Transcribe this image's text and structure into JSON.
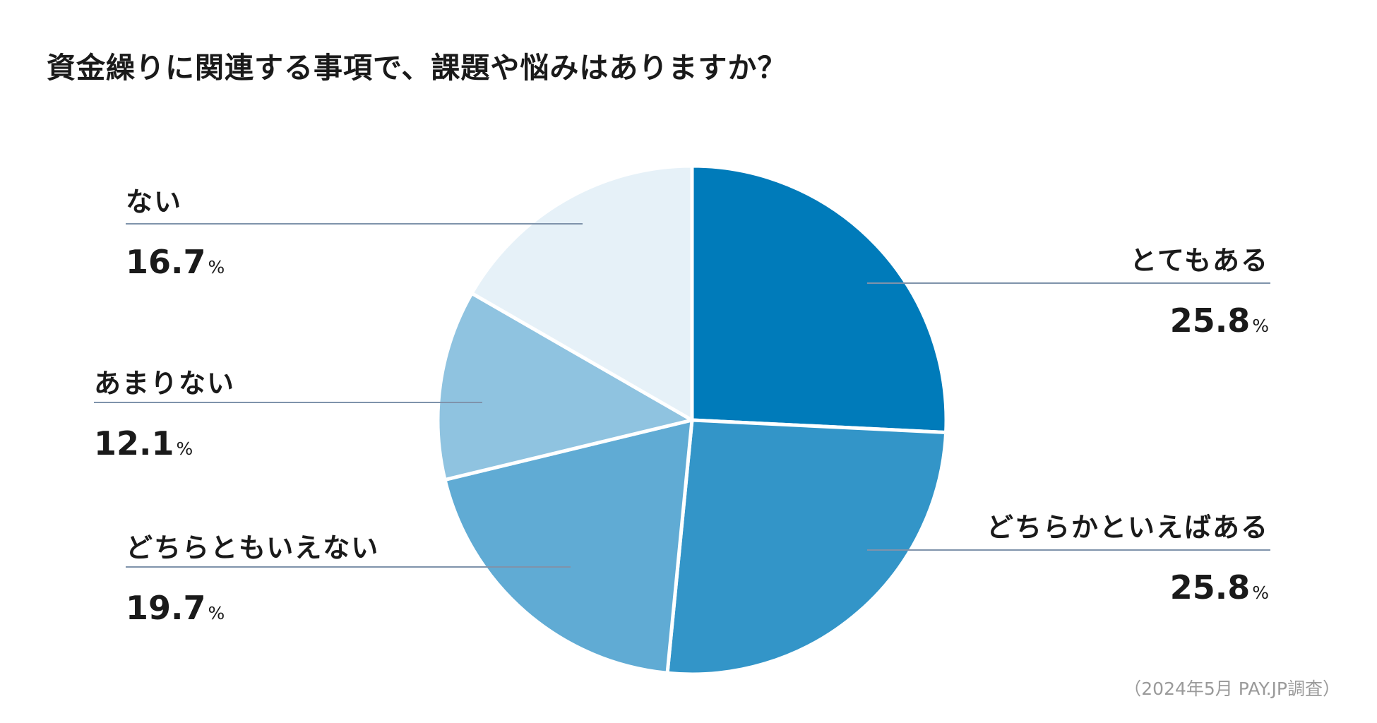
{
  "chart_data": {
    "type": "pie",
    "title": "資金繰りに関連する事項で、課題や悩みはありますか？",
    "unit": "%",
    "slices": [
      {
        "label": "とてもある",
        "value": 25.8,
        "display": "25.8",
        "color": "#007bba"
      },
      {
        "label": "どちらかといえばある",
        "value": 25.8,
        "display": "25.8",
        "color": "#3395c8"
      },
      {
        "label": "どちらともいえない",
        "value": 19.7,
        "display": "19.7",
        "color": "#60abd4"
      },
      {
        "label": "あまりない",
        "value": 12.1,
        "display": "12.1",
        "color": "#8fc3e0"
      },
      {
        "label": "ない",
        "value": 16.7,
        "display": "16.7",
        "color": "#e6f1f8"
      }
    ],
    "leader_line_color": "#7f93ab",
    "source": "（2024年5月 PAY.JP調査）"
  }
}
